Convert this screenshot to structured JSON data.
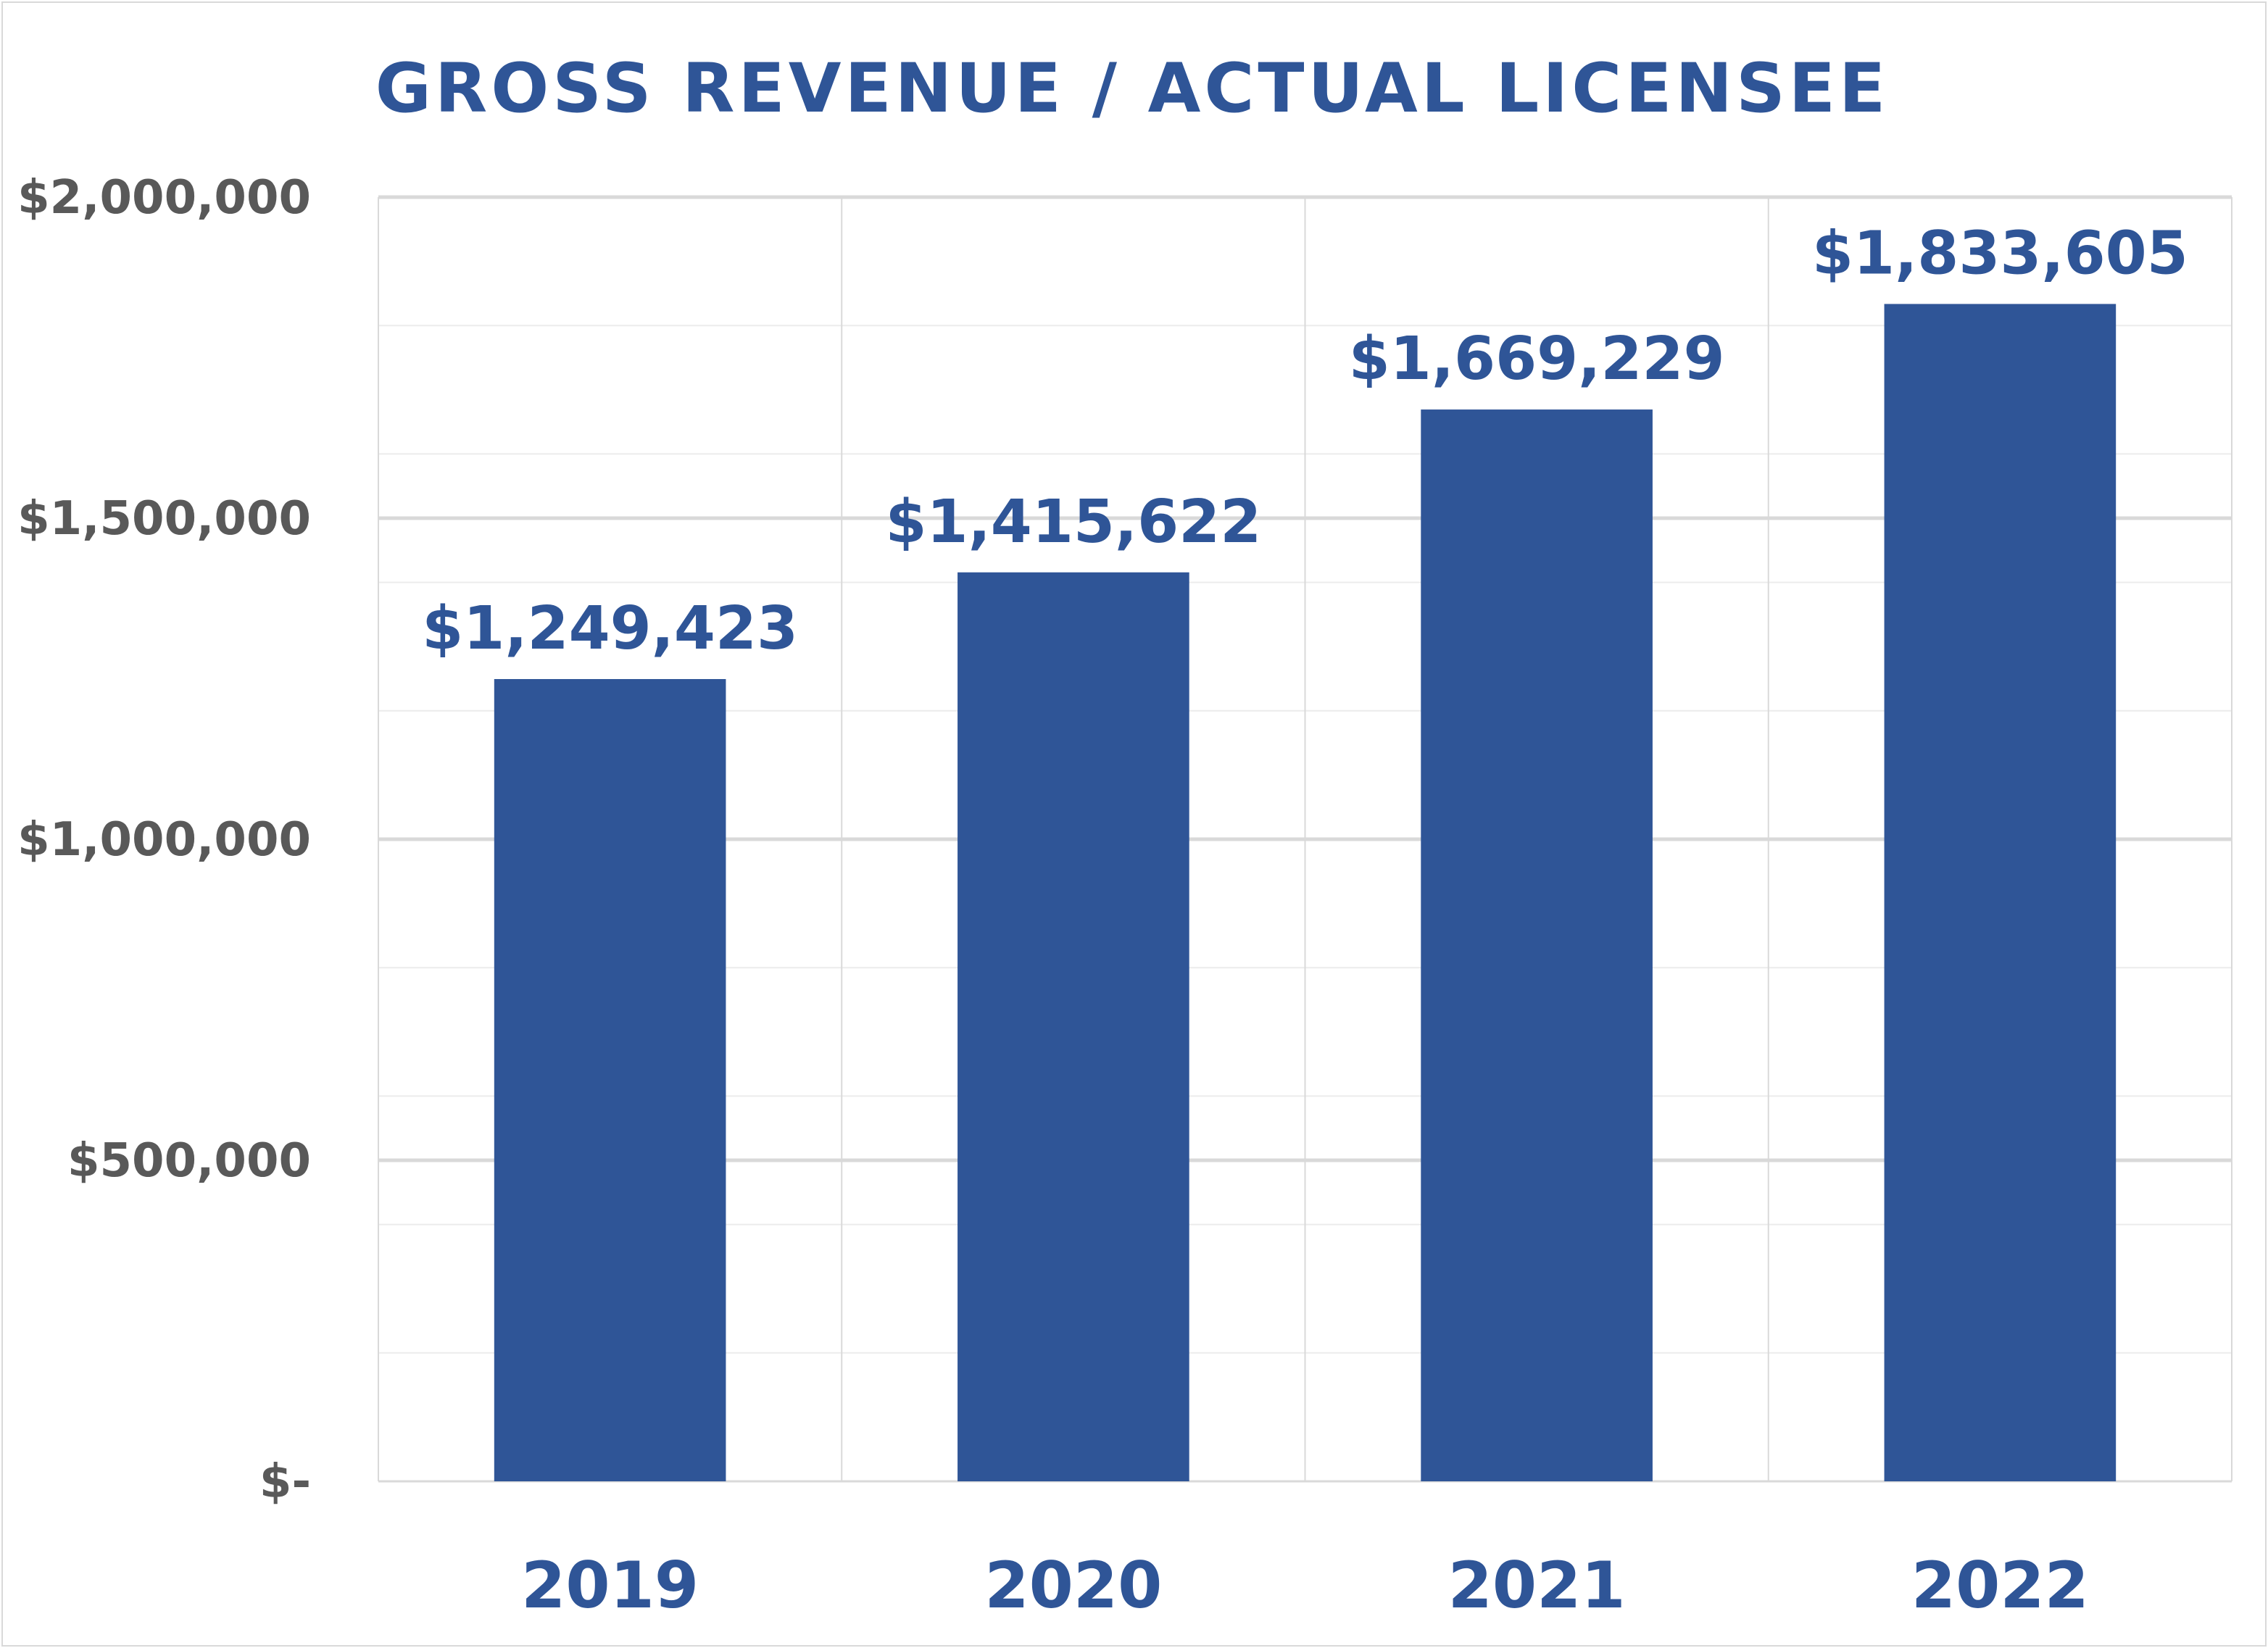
{
  "chart_data": {
    "type": "bar",
    "title": "GROSS REVENUE / ACTUAL LICENSEE",
    "categories": [
      "2019",
      "2020",
      "2021",
      "2022"
    ],
    "values": [
      1249423,
      1415622,
      1669229,
      1833605
    ],
    "data_labels": [
      "$1,249,423",
      "$1,415,622",
      "$1,669,229",
      "$1,833,605"
    ],
    "ylim": [
      0,
      2000000
    ],
    "yticks": [
      0,
      500000,
      1000000,
      1500000,
      2000000
    ],
    "ytick_labels": [
      "$-",
      "$500,000",
      "$1,000,000",
      "$1,500,000",
      "$2,000,000"
    ],
    "minor_step": 200000,
    "grid": true,
    "legend": "none",
    "colors": {
      "bar": "#2f5597",
      "title": "#2f5597",
      "x_tick_text": "#2f5597",
      "y_tick_text": "#595959",
      "major_grid": "#d9d9d9",
      "minor_grid": "#ececec"
    }
  }
}
